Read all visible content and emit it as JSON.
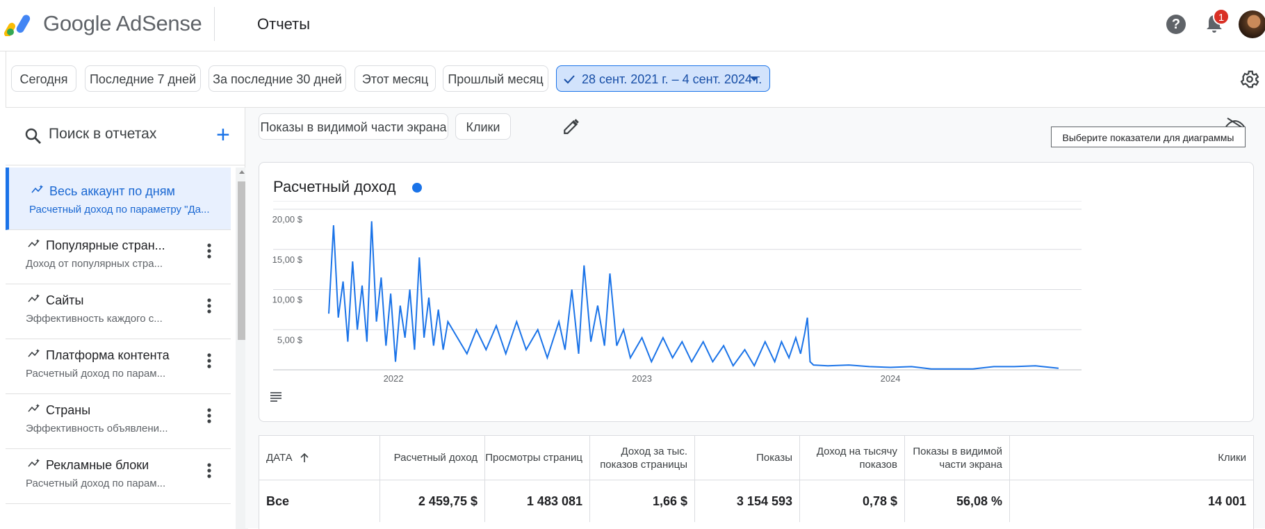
{
  "header": {
    "brand": "Google AdSense",
    "page_title": "Отчеты",
    "help_icon": "help-icon",
    "notifications_count": "1"
  },
  "date_filters": [
    {
      "label": "Сегодня"
    },
    {
      "label": "Последние 7 дней"
    },
    {
      "label": "За последние 30 дней"
    },
    {
      "label": "Этот месяц"
    },
    {
      "label": "Прошлый месяц"
    },
    {
      "label": "28 сент. 2021 г. – 4 сент. 2024 г.",
      "selected": true
    }
  ],
  "sidebar": {
    "search_placeholder": "Поиск в отчетах",
    "items": [
      {
        "title": "Весь аккаунт по дням",
        "desc": "Расчетный доход по параметру \"Да...",
        "active": true
      },
      {
        "title": "Популярные стран...",
        "desc": "Доход от популярных стра..."
      },
      {
        "title": "Сайты",
        "desc": "Эффективность каждого с..."
      },
      {
        "title": "Платформа контента",
        "desc": "Расчетный доход по парам..."
      },
      {
        "title": "Страны",
        "desc": "Эффективность объявлени..."
      },
      {
        "title": "Рекламные блоки",
        "desc": "Расчетный доход по парам..."
      }
    ]
  },
  "metric_chips": [
    {
      "label": "Показы в видимой части экрана"
    },
    {
      "label": "Клики"
    }
  ],
  "tooltip": "Выберите показатели для диаграммы",
  "chart_card": {
    "title": "Расчетный доход",
    "series_color": "#1a73e8"
  },
  "chart_data": {
    "type": "line",
    "ylabel_ticks": [
      "20,00 $",
      "15,00 $",
      "10,00 $",
      "5,00 $"
    ],
    "yticks": [
      20,
      15,
      10,
      5
    ],
    "ylim": [
      0,
      20
    ],
    "xticks": [
      "2022",
      "2023",
      "2024"
    ],
    "xrange": [
      "2021-09-28",
      "2024-09-04"
    ],
    "grid": true,
    "series": [
      {
        "color": "#1a73e8",
        "points": [
          [
            "2021-09-28",
            7.0
          ],
          [
            "2021-10-05",
            18.0
          ],
          [
            "2021-10-12",
            6.5
          ],
          [
            "2021-10-19",
            11.0
          ],
          [
            "2021-10-26",
            3.5
          ],
          [
            "2021-11-02",
            13.5
          ],
          [
            "2021-11-09",
            5.0
          ],
          [
            "2021-11-16",
            10.5
          ],
          [
            "2021-11-23",
            3.5
          ],
          [
            "2021-11-30",
            18.5
          ],
          [
            "2021-12-07",
            6.0
          ],
          [
            "2021-12-14",
            11.5
          ],
          [
            "2021-12-21",
            3.0
          ],
          [
            "2021-12-28",
            9.5
          ],
          [
            "2022-01-04",
            1.0
          ],
          [
            "2022-01-11",
            8.0
          ],
          [
            "2022-01-18",
            4.0
          ],
          [
            "2022-01-25",
            10.0
          ],
          [
            "2022-02-01",
            2.5
          ],
          [
            "2022-02-08",
            14.0
          ],
          [
            "2022-02-15",
            4.0
          ],
          [
            "2022-02-22",
            9.0
          ],
          [
            "2022-03-01",
            3.0
          ],
          [
            "2022-03-08",
            7.5
          ],
          [
            "2022-03-15",
            2.5
          ],
          [
            "2022-03-22",
            6.0
          ],
          [
            "2022-04-05",
            4.0
          ],
          [
            "2022-04-19",
            2.0
          ],
          [
            "2022-05-03",
            5.0
          ],
          [
            "2022-05-17",
            2.5
          ],
          [
            "2022-06-01",
            5.5
          ],
          [
            "2022-06-15",
            2.0
          ],
          [
            "2022-07-01",
            6.0
          ],
          [
            "2022-07-15",
            2.5
          ],
          [
            "2022-08-01",
            5.0
          ],
          [
            "2022-08-15",
            1.5
          ],
          [
            "2022-09-01",
            6.0
          ],
          [
            "2022-09-10",
            2.5
          ],
          [
            "2022-09-20",
            10.0
          ],
          [
            "2022-09-30",
            2.0
          ],
          [
            "2022-10-08",
            13.0
          ],
          [
            "2022-10-18",
            3.5
          ],
          [
            "2022-10-28",
            8.0
          ],
          [
            "2022-11-07",
            3.0
          ],
          [
            "2022-11-15",
            12.0
          ],
          [
            "2022-11-25",
            3.0
          ],
          [
            "2022-12-05",
            5.0
          ],
          [
            "2022-12-15",
            1.5
          ],
          [
            "2023-01-01",
            4.0
          ],
          [
            "2023-01-15",
            1.0
          ],
          [
            "2023-02-01",
            4.0
          ],
          [
            "2023-02-15",
            1.5
          ],
          [
            "2023-03-01",
            3.5
          ],
          [
            "2023-03-15",
            1.0
          ],
          [
            "2023-04-01",
            3.5
          ],
          [
            "2023-04-15",
            1.0
          ],
          [
            "2023-05-01",
            3.0
          ],
          [
            "2023-05-15",
            0.5
          ],
          [
            "2023-06-01",
            2.5
          ],
          [
            "2023-06-15",
            0.5
          ],
          [
            "2023-07-01",
            3.5
          ],
          [
            "2023-07-15",
            1.0
          ],
          [
            "2023-07-25",
            3.5
          ],
          [
            "2023-08-05",
            1.5
          ],
          [
            "2023-08-15",
            4.0
          ],
          [
            "2023-08-22",
            2.0
          ],
          [
            "2023-08-28",
            4.5
          ],
          [
            "2023-09-01",
            6.5
          ],
          [
            "2023-09-05",
            1.0
          ],
          [
            "2023-09-10",
            0.6
          ],
          [
            "2023-10-01",
            0.5
          ],
          [
            "2023-11-01",
            0.6
          ],
          [
            "2023-12-01",
            0.4
          ],
          [
            "2024-01-01",
            0.3
          ],
          [
            "2024-02-01",
            0.4
          ],
          [
            "2024-03-01",
            0.1
          ],
          [
            "2024-04-01",
            0.1
          ],
          [
            "2024-05-01",
            0.1
          ],
          [
            "2024-06-01",
            0.4
          ],
          [
            "2024-07-01",
            0.4
          ],
          [
            "2024-08-01",
            0.5
          ],
          [
            "2024-09-04",
            0.2
          ]
        ]
      }
    ]
  },
  "table": {
    "headers": [
      "ДАТА",
      "Расчетный доход",
      "Просмотры страниц",
      "Доход за тыс. показов страницы",
      "Показы",
      "Доход на тысячу показов",
      "Показы в видимой части экрана",
      "Клики"
    ],
    "total_row": [
      "Все",
      "2 459,75 $",
      "1 483 081",
      "1,66 $",
      "3 154 593",
      "0,78 $",
      "56,08 %",
      "14 001"
    ]
  }
}
